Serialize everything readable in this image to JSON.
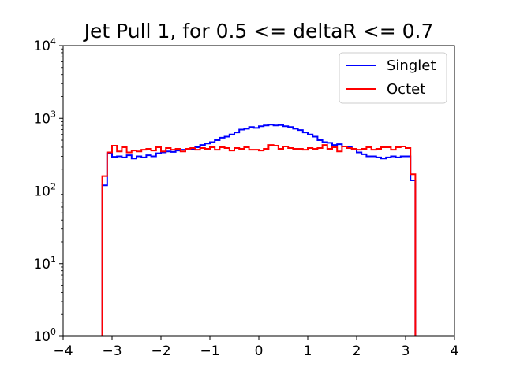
{
  "chart_data": {
    "type": "histogram-step",
    "title": "Jet Pull 1, for 0.5 <= deltaR <= 0.7",
    "xlabel": "",
    "ylabel": "",
    "xlim": [
      -4,
      4
    ],
    "ylim": [
      1,
      10000
    ],
    "yscale": "log",
    "x_ticks": [
      -4,
      -3,
      -2,
      -1,
      0,
      1,
      2,
      3,
      4
    ],
    "x_tick_labels": [
      "−4",
      "−3",
      "−2",
      "−1",
      "0",
      "1",
      "2",
      "3",
      "4"
    ],
    "y_ticks": [
      1,
      10,
      100,
      1000,
      10000
    ],
    "y_tick_labels": [
      {
        "base": "10",
        "exp": "0"
      },
      {
        "base": "10",
        "exp": "1"
      },
      {
        "base": "10",
        "exp": "2"
      },
      {
        "base": "10",
        "exp": "3"
      },
      {
        "base": "10",
        "exp": "4"
      }
    ],
    "grid": false,
    "legend_position": "top-right",
    "bins": {
      "start": -3.2,
      "end": 3.2,
      "count": 64
    },
    "series": [
      {
        "name": "Singlet",
        "color": "#0000ff",
        "values": [
          120,
          330,
          295,
          300,
          290,
          310,
          280,
          300,
          290,
          310,
          300,
          330,
          340,
          350,
          345,
          360,
          370,
          375,
          380,
          400,
          430,
          450,
          470,
          500,
          540,
          560,
          600,
          640,
          700,
          720,
          760,
          740,
          780,
          800,
          820,
          800,
          810,
          780,
          760,
          720,
          690,
          640,
          600,
          560,
          500,
          470,
          460,
          430,
          440,
          410,
          400,
          380,
          340,
          320,
          300,
          300,
          290,
          280,
          290,
          300,
          290,
          300,
          300,
          140
        ]
      },
      {
        "name": "Octet",
        "color": "#ff0000",
        "values": [
          160,
          340,
          420,
          350,
          400,
          340,
          360,
          350,
          370,
          380,
          360,
          400,
          350,
          390,
          370,
          380,
          350,
          380,
          390,
          370,
          390,
          380,
          400,
          370,
          400,
          390,
          360,
          390,
          380,
          400,
          370,
          370,
          360,
          380,
          430,
          420,
          380,
          410,
          390,
          380,
          380,
          370,
          390,
          380,
          390,
          430,
          380,
          400,
          350,
          410,
          390,
          380,
          370,
          380,
          400,
          370,
          380,
          400,
          400,
          370,
          400,
          410,
          390,
          170
        ]
      }
    ]
  }
}
